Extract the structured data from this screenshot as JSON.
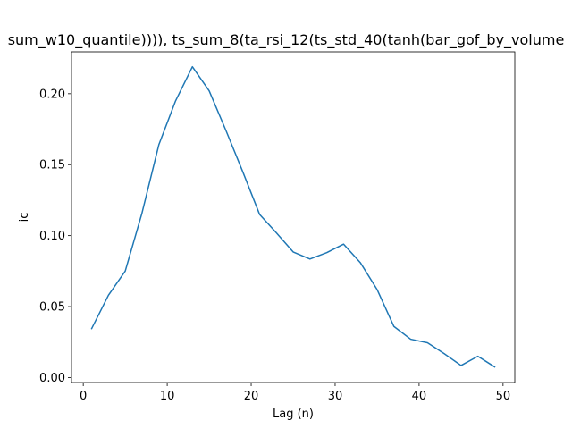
{
  "chart_data": {
    "type": "line",
    "title": "sum_w10_quantile)))), ts_sum_8(ta_rsi_12(ts_std_40(tanh(bar_gof_by_volume",
    "xlabel": "Lag (n)",
    "ylabel": "ic",
    "xlim": [
      -1.4,
      51.4
    ],
    "ylim": [
      -0.0035,
      0.2295
    ],
    "xticks": [
      0,
      10,
      20,
      30,
      40,
      50
    ],
    "xtick_labels": [
      "0",
      "10",
      "20",
      "30",
      "40",
      "50"
    ],
    "yticks": [
      0.0,
      0.05,
      0.1,
      0.15,
      0.2
    ],
    "ytick_labels": [
      "0.00",
      "0.05",
      "0.10",
      "0.15",
      "0.20"
    ],
    "grid": false,
    "line_color": "#1f77b4",
    "series": [
      {
        "x": [
          1,
          3,
          5,
          7,
          9,
          11,
          13,
          15,
          17,
          19,
          21,
          23,
          25,
          27,
          29,
          31,
          33,
          35,
          37,
          39,
          41,
          43,
          45,
          47,
          49
        ],
        "values": [
          0.0345,
          0.058,
          0.075,
          0.116,
          0.164,
          0.195,
          0.219,
          0.202,
          0.174,
          0.145,
          0.115,
          0.102,
          0.0885,
          0.0835,
          0.088,
          0.094,
          0.081,
          0.062,
          0.036,
          0.027,
          0.0245,
          0.0168,
          0.0085,
          0.015,
          0.0075
        ]
      }
    ]
  }
}
